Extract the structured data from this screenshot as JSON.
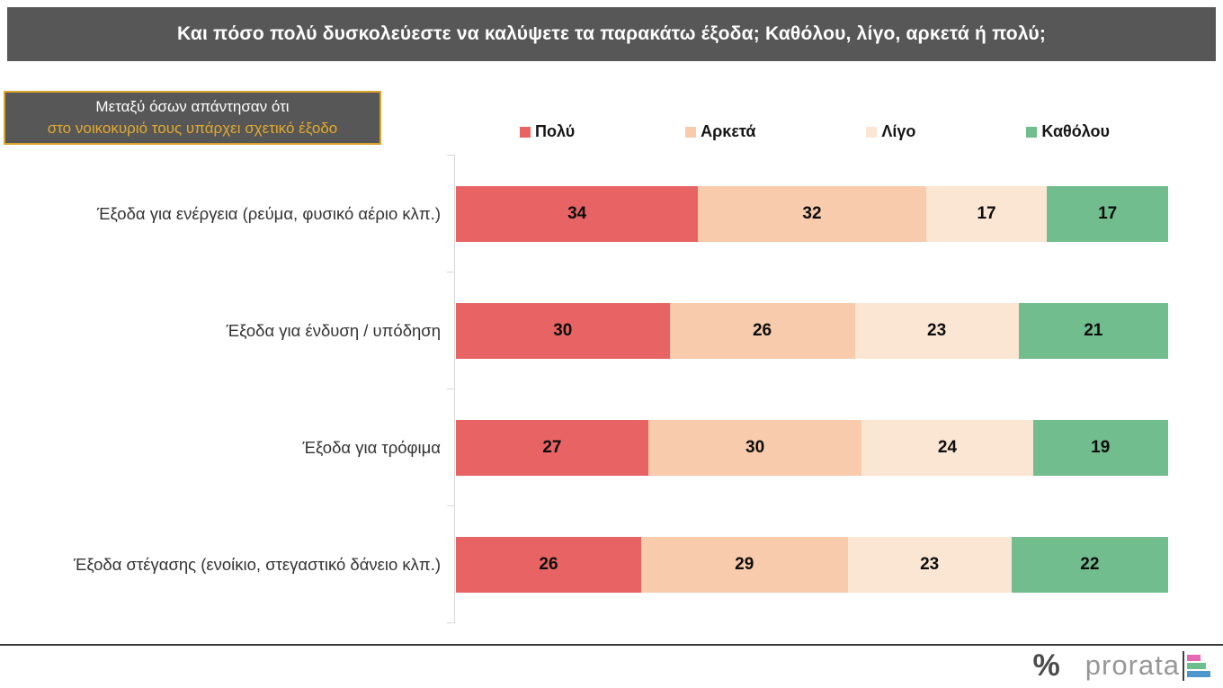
{
  "title": "Και πόσο πολύ δυσκολεύεστε να καλύψετε τα παρακάτω έξοδα; Καθόλου, λίγο, αρκετά ή πολύ;",
  "annotation": {
    "line1": "Μεταξύ όσων απάντησαν ότι",
    "line2": "στο νοικοκυριό τους υπάρχει σχετικό έξοδο"
  },
  "chart_data": {
    "type": "bar",
    "orientation": "horizontal",
    "stacked": true,
    "categories": [
      "Έξοδα για ενέργεια (ρεύμα, φυσικό αέριο κλπ.)",
      "Έξοδα για ένδυση / υπόδηση",
      "Έξοδα για τρόφιμα",
      "Έξοδα στέγασης (ενοίκιο, στεγαστικό δάνειο κλπ.)"
    ],
    "series": [
      {
        "name": "Πολύ",
        "color": "#E86464",
        "values": [
          34,
          30,
          27,
          26
        ]
      },
      {
        "name": "Αρκετά",
        "color": "#F7CBAB",
        "values": [
          32,
          26,
          30,
          29
        ]
      },
      {
        "name": "Λίγο",
        "color": "#FBE6D4",
        "values": [
          17,
          23,
          24,
          23
        ]
      },
      {
        "name": "Καθόλου",
        "color": "#71BD8D",
        "values": [
          17,
          21,
          19,
          22
        ]
      }
    ],
    "xlim": [
      0,
      100
    ],
    "legend_position": "top",
    "grid": false,
    "data_labels": true
  },
  "colors": {
    "title_bar_bg": "#575757",
    "annotation_border": "#D9A32C",
    "annotation_highlight": "#E2AA2D",
    "axis_line": "#D8D8D8",
    "footer_rule": "#3A3A3A"
  },
  "footer": {
    "percent_mark": "%",
    "brand": "prorata",
    "logo_bar_colors": [
      "#E468B4",
      "#6CBE8C",
      "#4E96CE"
    ],
    "logo_bar_widths": [
      15,
      21,
      26
    ]
  }
}
